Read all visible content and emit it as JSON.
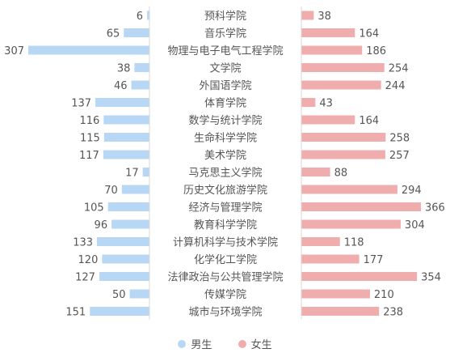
{
  "chart_data": {
    "type": "bar",
    "orientation": "horizontal-butterfly",
    "categories": [
      "预科学院",
      "音乐学院",
      "物理与电子电气工程学院",
      "文学院",
      "外国语学院",
      "体育学院",
      "数学与统计学院",
      "生命科学学院",
      "美术学院",
      "马克思主义学院",
      "历史文化旅游学院",
      "经济与管理学院",
      "教育科学学院",
      "计算机科学与技术学院",
      "化学化工学院",
      "法律政治与公共管理学院",
      "传媒学院",
      "城市与环境学院"
    ],
    "series": [
      {
        "name": "男生",
        "color": "#b7d7f4",
        "values": [
          6,
          65,
          307,
          38,
          46,
          137,
          116,
          115,
          117,
          17,
          70,
          105,
          96,
          133,
          120,
          127,
          50,
          151
        ]
      },
      {
        "name": "女生",
        "color": "#f0adad",
        "values": [
          38,
          164,
          186,
          254,
          244,
          43,
          164,
          258,
          257,
          88,
          294,
          366,
          304,
          118,
          177,
          354,
          210,
          238
        ]
      }
    ],
    "legend_position": "bottom",
    "grid": false
  }
}
